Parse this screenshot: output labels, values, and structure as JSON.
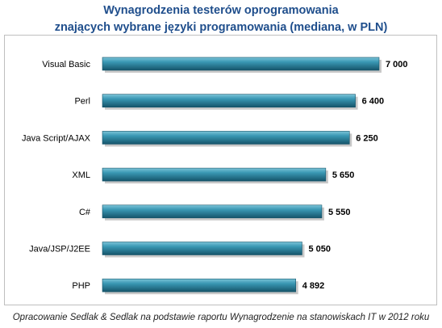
{
  "chart_data": {
    "type": "bar",
    "orientation": "horizontal",
    "title_line1": "Wynagrodzenia testerów oprogramowania",
    "title_line2": "znających wybrane języki programowania (mediana, w PLN)",
    "categories": [
      "Visual Basic",
      "Perl",
      "Java Script/AJAX",
      "XML",
      "C#",
      "Java/JSP/J2EE",
      "PHP"
    ],
    "values": [
      7000,
      6400,
      6250,
      5650,
      5550,
      5050,
      4892
    ],
    "value_labels": [
      "7 000",
      "6 400",
      "6 250",
      "5 650",
      "5 550",
      "5 050",
      "4 892"
    ],
    "xlim": [
      0,
      7000
    ],
    "grid": false,
    "legend": "none",
    "bar_color": "#2e8aa6",
    "bar_color_dark": "#15546a",
    "title_color": "#1f4e8c"
  },
  "footer_text": "Opracowanie Sedlak & Sedlak na podstawie raportu Wynagrodzenie na stanowiskach  IT w 2012 roku"
}
